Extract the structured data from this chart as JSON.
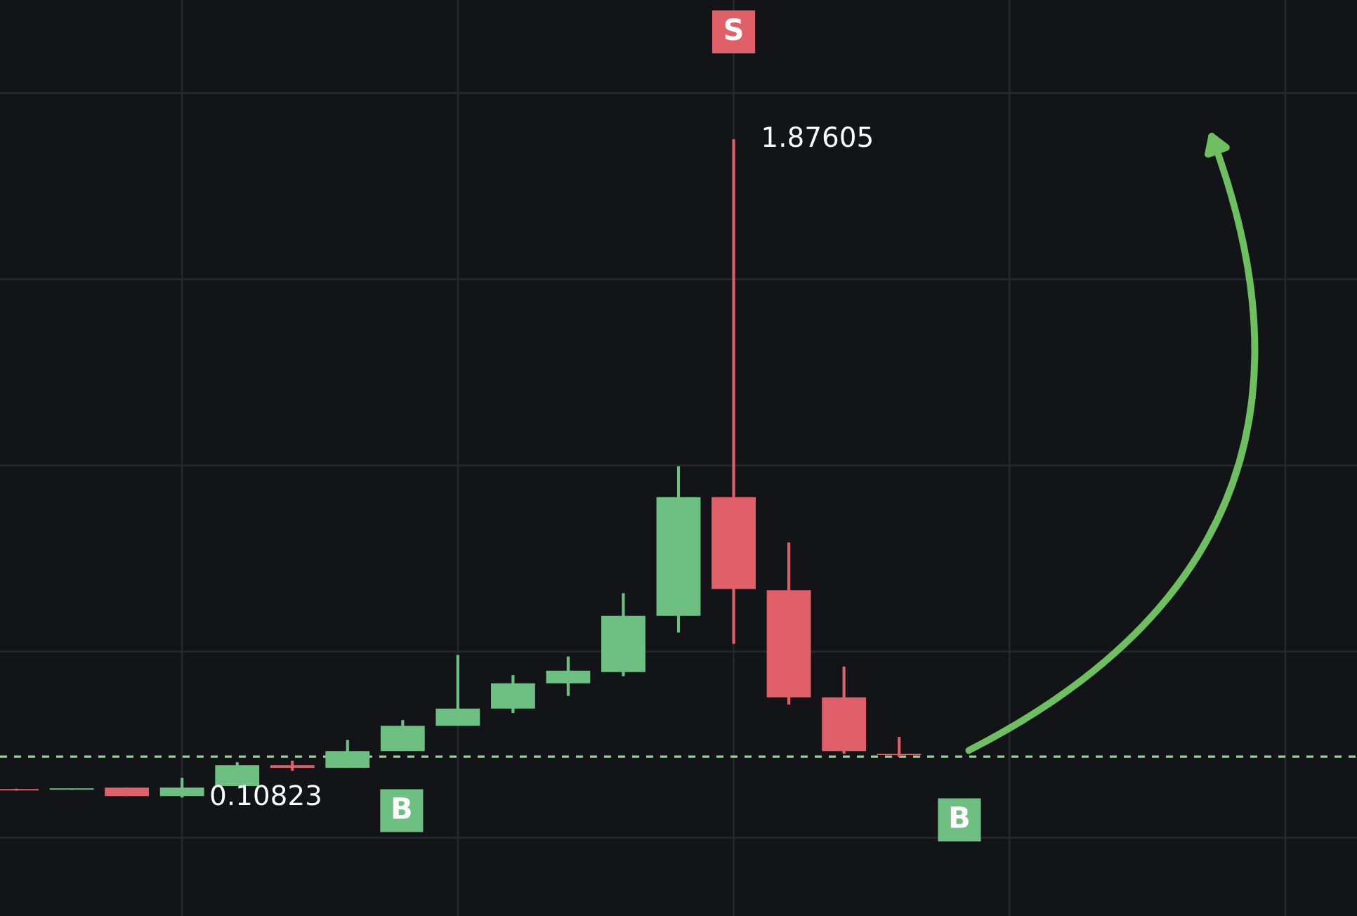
{
  "chart_data": {
    "type": "candlestick",
    "categories": [
      null,
      null,
      null,
      null,
      null,
      null,
      null,
      null,
      null,
      null,
      null,
      null,
      null,
      null,
      null,
      null,
      null
    ],
    "ohlc": [
      [
        0.131,
        0.132,
        0.127,
        0.127
      ],
      [
        0.129,
        0.131,
        0.129,
        0.131
      ],
      [
        0.135,
        0.135,
        0.112,
        0.112
      ],
      [
        0.112,
        0.161,
        0.10823,
        0.135
      ],
      [
        0.139,
        0.203,
        0.139,
        0.195
      ],
      [
        0.195,
        0.207,
        0.18,
        0.188
      ],
      [
        0.188,
        0.263,
        0.188,
        0.233
      ],
      [
        0.233,
        0.316,
        0.233,
        0.301
      ],
      [
        0.301,
        0.491,
        0.301,
        0.347
      ],
      [
        0.347,
        0.437,
        0.335,
        0.415
      ],
      [
        0.415,
        0.487,
        0.381,
        0.449
      ],
      [
        0.445,
        0.657,
        0.434,
        0.596
      ],
      [
        0.596,
        0.998,
        0.551,
        0.915
      ],
      [
        0.915,
        1.87605,
        0.521,
        0.668
      ],
      [
        0.665,
        0.793,
        0.358,
        0.377
      ],
      [
        0.377,
        0.46,
        0.226,
        0.233
      ],
      [
        0.226,
        0.271,
        0.217,
        0.222
      ]
    ],
    "colors": [
      "#e0606a",
      "#6dbf82",
      "#e0606a",
      "#6dbf82",
      "#6dbf82",
      "#e0606a",
      "#6dbf82",
      "#6dbf82",
      "#6dbf82",
      "#6dbf82",
      "#6dbf82",
      "#6dbf82",
      "#6dbf82",
      "#e0606a",
      "#e0606a",
      "#e0606a",
      "#e0606a"
    ],
    "tick_labels": false,
    "grid": true,
    "ref_lines": [
      {
        "axis": "y",
        "value": 0.218,
        "label": null,
        "color": "#9ccf9f",
        "line_style": "dashed"
      }
    ],
    "annotations": [
      "S",
      "B",
      "B",
      "1.87605",
      "0.10823"
    ]
  }
}
